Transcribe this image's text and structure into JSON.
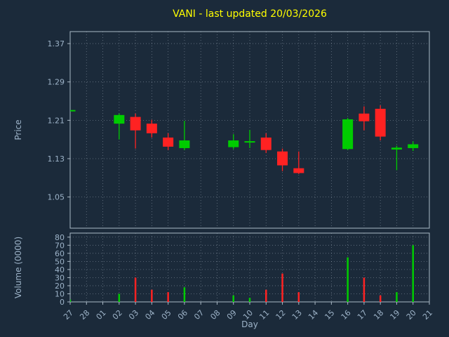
{
  "chart_data": {
    "type": "candlestick",
    "title": "VANI - last updated 20/03/2026",
    "xlabel": "Day",
    "x_categories": [
      "27",
      "28",
      "01",
      "02",
      "03",
      "04",
      "05",
      "06",
      "07",
      "08",
      "09",
      "10",
      "11",
      "12",
      "13",
      "14",
      "15",
      "16",
      "17",
      "18",
      "19",
      "20",
      "21"
    ],
    "price": {
      "ylabel": "Price",
      "ylim": [
        0.985,
        1.395
      ],
      "ticks": [
        1.05,
        1.13,
        1.21,
        1.29,
        1.37
      ]
    },
    "volume": {
      "ylabel": "Volume (0000)",
      "ylim": [
        0,
        85
      ],
      "ticks": [
        0,
        10,
        20,
        30,
        40,
        50,
        60,
        70,
        80
      ]
    },
    "grid": true,
    "legend": "none",
    "colors": {
      "background": "#1b2a3a",
      "up": "#00cc00",
      "down": "#ff2222",
      "grid": "#c9d6e2",
      "spine": "#aab9c6",
      "tick_label": "#9db3c8",
      "title": "#ffff00"
    },
    "candles": [
      {
        "day": "27",
        "open": 1.23,
        "high": 1.23,
        "low": 1.23,
        "close": 1.23,
        "volume": 3
      },
      {
        "day": "02",
        "open": 1.203,
        "high": 1.224,
        "low": 1.17,
        "close": 1.221,
        "volume": 10
      },
      {
        "day": "03",
        "open": 1.217,
        "high": 1.224,
        "low": 1.151,
        "close": 1.189,
        "volume": 30
      },
      {
        "day": "04",
        "open": 1.203,
        "high": 1.211,
        "low": 1.174,
        "close": 1.183,
        "volume": 15
      },
      {
        "day": "05",
        "open": 1.174,
        "high": 1.183,
        "low": 1.148,
        "close": 1.155,
        "volume": 12
      },
      {
        "day": "06",
        "open": 1.152,
        "high": 1.209,
        "low": 1.148,
        "close": 1.168,
        "volume": 18
      },
      {
        "day": "09",
        "open": 1.154,
        "high": 1.181,
        "low": 1.15,
        "close": 1.168,
        "volume": 8
      },
      {
        "day": "10",
        "open": 1.164,
        "high": 1.19,
        "low": 1.152,
        "close": 1.165,
        "volume": 5
      },
      {
        "day": "11",
        "open": 1.174,
        "high": 1.183,
        "low": 1.142,
        "close": 1.148,
        "volume": 15
      },
      {
        "day": "12",
        "open": 1.145,
        "high": 1.151,
        "low": 1.104,
        "close": 1.116,
        "volume": 35
      },
      {
        "day": "13",
        "open": 1.11,
        "high": 1.145,
        "low": 1.098,
        "close": 1.1,
        "volume": 12
      },
      {
        "day": "16",
        "open": 1.15,
        "high": 1.215,
        "low": 1.148,
        "close": 1.212,
        "volume": 55
      },
      {
        "day": "17",
        "open": 1.224,
        "high": 1.239,
        "low": 1.189,
        "close": 1.208,
        "volume": 30
      },
      {
        "day": "18",
        "open": 1.234,
        "high": 1.241,
        "low": 1.168,
        "close": 1.176,
        "volume": 8
      },
      {
        "day": "19",
        "open": 1.149,
        "high": 1.157,
        "low": 1.106,
        "close": 1.153,
        "volume": 12
      },
      {
        "day": "20",
        "open": 1.152,
        "high": 1.166,
        "low": 1.146,
        "close": 1.16,
        "volume": 70
      }
    ]
  }
}
